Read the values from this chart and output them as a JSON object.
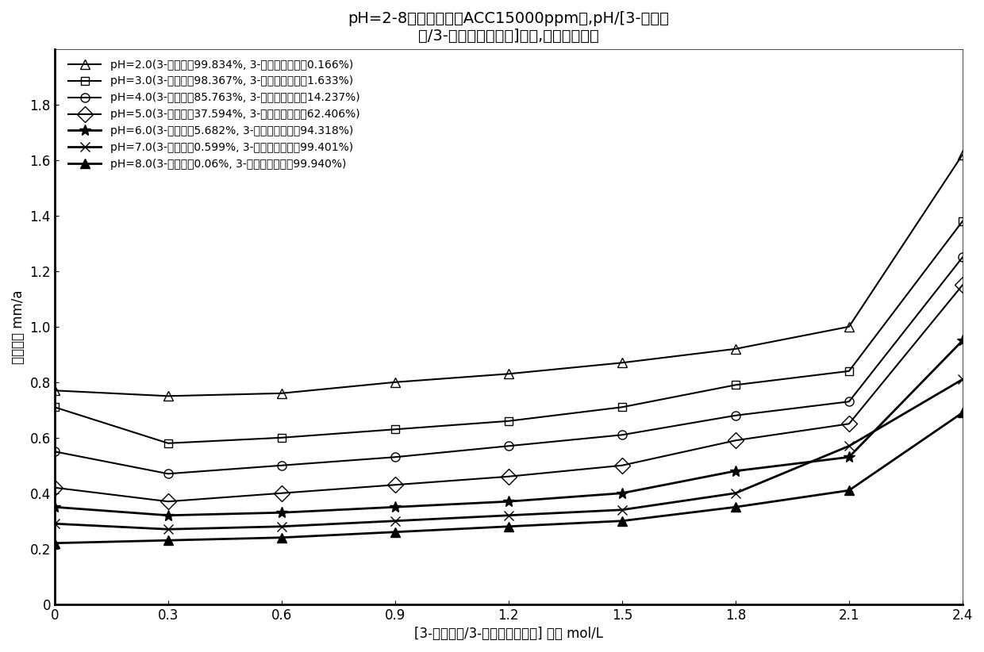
{
  "title_line1": "pH=2-8氧化性体系（ACC15000ppm）,pH/[3-甲基丁",
  "title_line2": "酸/3-甲基丁酸根离子]协同,对锐的腐蚀性",
  "xlabel": "[3-甲基丁酸/3-甲基丁酸根离子] 含量 mol/L",
  "ylabel": "腐蚀速率 mm/a",
  "x_values": [
    0,
    0.3,
    0.6,
    0.9,
    1.2,
    1.5,
    1.8,
    2.1,
    2.4
  ],
  "series": [
    {
      "label": "pH=2.0(3-甲基丁醒99.834%, 3-甲基丁酸根离子0.166%)",
      "y": [
        0.77,
        0.75,
        0.76,
        0.8,
        0.83,
        0.87,
        0.92,
        1.0,
        1.62
      ],
      "marker": "^",
      "fillstyle": "none",
      "lw": 1.5
    },
    {
      "label": "pH=3.0(3-甲基丁醒98.367%, 3-甲基丁酸根离子1.633%)",
      "y": [
        0.71,
        0.58,
        0.6,
        0.63,
        0.66,
        0.71,
        0.79,
        0.84,
        1.38
      ],
      "marker": "s",
      "fillstyle": "none",
      "lw": 1.5
    },
    {
      "label": "pH=4.0(3-甲基丁醒85.763%, 3-甲基丁酸根离子14.237%)",
      "y": [
        0.55,
        0.47,
        0.5,
        0.53,
        0.57,
        0.61,
        0.68,
        0.73,
        1.25
      ],
      "marker": "o",
      "fillstyle": "none",
      "lw": 1.5
    },
    {
      "label": "pH=5.0(3-甲基丁醒37.594%, 3-甲基丁酸根离子62.406%)",
      "y": [
        0.42,
        0.37,
        0.4,
        0.43,
        0.46,
        0.5,
        0.59,
        0.65,
        1.15
      ],
      "marker": "o",
      "fillstyle": "none",
      "lw": 1.5,
      "diamond": true
    },
    {
      "label": "pH=6.0(3-甲基丁醒5.682%, 3-甲基丁酸根离子94.318%)",
      "y": [
        0.35,
        0.32,
        0.33,
        0.35,
        0.37,
        0.4,
        0.48,
        0.53,
        0.95
      ],
      "marker": "*",
      "fillstyle": "full",
      "lw": 2.0
    },
    {
      "label": "pH=7.0(3-甲基丁醒0.599%, 3-甲基丁酸根离子99.401%)",
      "y": [
        0.29,
        0.27,
        0.28,
        0.3,
        0.32,
        0.34,
        0.4,
        0.57,
        0.81
      ],
      "marker": "x",
      "fillstyle": "full",
      "lw": 2.0
    },
    {
      "label": "pH=8.0(3-甲基丁醒0.06%, 3-甲基丁酸根离子99.940%)",
      "y": [
        0.22,
        0.23,
        0.24,
        0.26,
        0.28,
        0.3,
        0.35,
        0.41,
        0.69
      ],
      "marker": "^",
      "fillstyle": "full",
      "lw": 2.0
    }
  ],
  "series_markers_sizes": [
    8,
    7,
    8,
    10,
    10,
    9,
    8
  ],
  "ylim": [
    0,
    2.0
  ],
  "xlim": [
    0,
    2.4
  ],
  "yticks": [
    0,
    0.2,
    0.4,
    0.6,
    0.8,
    1.0,
    1.2,
    1.4,
    1.6,
    1.8
  ],
  "xticks": [
    0,
    0.3,
    0.6,
    0.9,
    1.2,
    1.5,
    1.8,
    2.1,
    2.4
  ],
  "background_color": "#ffffff",
  "title_fontsize": 14,
  "label_fontsize": 12,
  "tick_fontsize": 12,
  "legend_fontsize": 10
}
